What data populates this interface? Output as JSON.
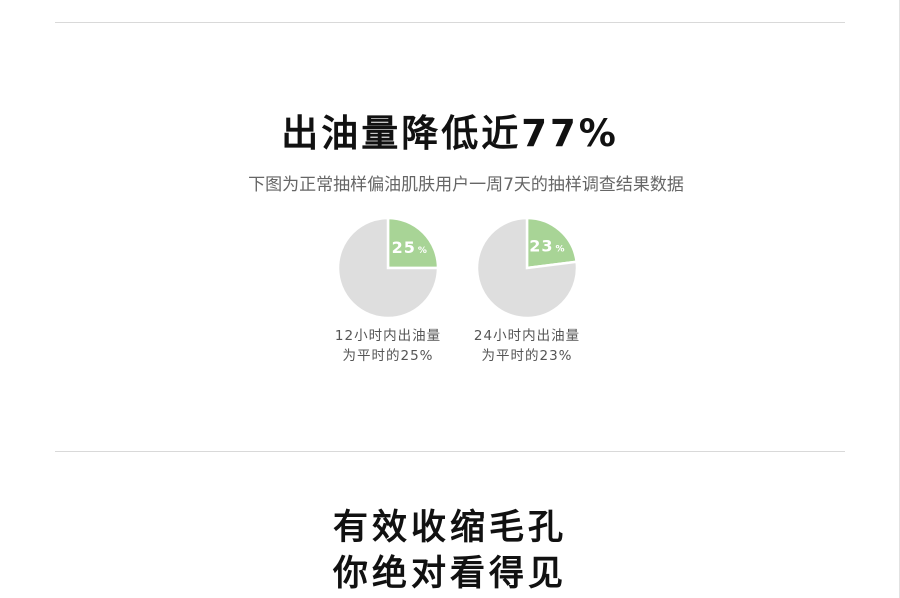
{
  "section1": {
    "headline": "出油量降低近77%",
    "subtitle": "下图为正常抽样偏油肌肤用户一周7天的抽样调查结果数据"
  },
  "chart_data": [
    {
      "type": "pie",
      "slices": [
        {
          "label": "25%",
          "value": 25,
          "color": "#a8d496"
        },
        {
          "label": "",
          "value": 75,
          "color": "#dedede"
        }
      ],
      "caption_line1": "12小时内出油量",
      "caption_line2": "为平时的25%"
    },
    {
      "type": "pie",
      "slices": [
        {
          "label": "23%",
          "value": 23,
          "color": "#a8d496"
        },
        {
          "label": "",
          "value": 77,
          "color": "#dedede"
        }
      ],
      "caption_line1": "24小时内出油量",
      "caption_line2": "为平时的23%"
    }
  ],
  "section2": {
    "title_line1": "有效收缩毛孔",
    "title_line2": "你绝对看得见"
  }
}
